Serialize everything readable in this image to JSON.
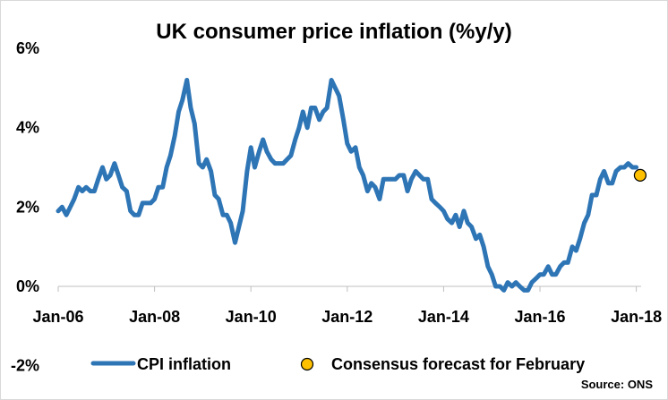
{
  "chart_data": {
    "type": "line",
    "title": "UK consumer price inflation (%y/y)",
    "source": "Source: ONS",
    "ylim": [
      -2,
      6
    ],
    "y_ticks": [
      {
        "value": 6,
        "label": "6%"
      },
      {
        "value": 4,
        "label": "4%"
      },
      {
        "value": 2,
        "label": "2%"
      },
      {
        "value": 0,
        "label": "0%"
      },
      {
        "value": -2,
        "label": "-2%"
      }
    ],
    "x_ticks": [
      {
        "value": 2006,
        "label": "Jan-06"
      },
      {
        "value": 2008,
        "label": "Jan-08"
      },
      {
        "value": 2010,
        "label": "Jan-10"
      },
      {
        "value": 2012,
        "label": "Jan-12"
      },
      {
        "value": 2014,
        "label": "Jan-14"
      },
      {
        "value": 2016,
        "label": "Jan-16"
      },
      {
        "value": 2018,
        "label": "Jan-18"
      }
    ],
    "xlim": [
      2006,
      2018.1
    ],
    "grid": false,
    "legend_position": "bottom",
    "series": [
      {
        "name": "CPI inflation",
        "type": "line",
        "color": "#2e75b6",
        "points": [
          [
            2006.0,
            1.9
          ],
          [
            2006.08,
            2.0
          ],
          [
            2006.17,
            1.8
          ],
          [
            2006.25,
            2.0
          ],
          [
            2006.33,
            2.2
          ],
          [
            2006.42,
            2.5
          ],
          [
            2006.5,
            2.4
          ],
          [
            2006.58,
            2.5
          ],
          [
            2006.67,
            2.4
          ],
          [
            2006.75,
            2.4
          ],
          [
            2006.83,
            2.7
          ],
          [
            2006.92,
            3.0
          ],
          [
            2007.0,
            2.7
          ],
          [
            2007.08,
            2.8
          ],
          [
            2007.17,
            3.1
          ],
          [
            2007.25,
            2.8
          ],
          [
            2007.33,
            2.5
          ],
          [
            2007.42,
            2.4
          ],
          [
            2007.5,
            1.9
          ],
          [
            2007.58,
            1.8
          ],
          [
            2007.67,
            1.8
          ],
          [
            2007.75,
            2.1
          ],
          [
            2007.83,
            2.1
          ],
          [
            2007.92,
            2.1
          ],
          [
            2008.0,
            2.2
          ],
          [
            2008.08,
            2.5
          ],
          [
            2008.17,
            2.5
          ],
          [
            2008.25,
            3.0
          ],
          [
            2008.33,
            3.3
          ],
          [
            2008.42,
            3.8
          ],
          [
            2008.5,
            4.4
          ],
          [
            2008.58,
            4.7
          ],
          [
            2008.67,
            5.2
          ],
          [
            2008.75,
            4.5
          ],
          [
            2008.83,
            4.1
          ],
          [
            2008.92,
            3.1
          ],
          [
            2009.0,
            3.0
          ],
          [
            2009.08,
            3.2
          ],
          [
            2009.17,
            2.9
          ],
          [
            2009.25,
            2.3
          ],
          [
            2009.33,
            2.2
          ],
          [
            2009.42,
            1.8
          ],
          [
            2009.5,
            1.8
          ],
          [
            2009.58,
            1.6
          ],
          [
            2009.67,
            1.1
          ],
          [
            2009.75,
            1.5
          ],
          [
            2009.83,
            1.9
          ],
          [
            2009.92,
            2.9
          ],
          [
            2010.0,
            3.5
          ],
          [
            2010.08,
            3.0
          ],
          [
            2010.17,
            3.4
          ],
          [
            2010.25,
            3.7
          ],
          [
            2010.33,
            3.4
          ],
          [
            2010.42,
            3.2
          ],
          [
            2010.5,
            3.1
          ],
          [
            2010.58,
            3.1
          ],
          [
            2010.67,
            3.1
          ],
          [
            2010.75,
            3.2
          ],
          [
            2010.83,
            3.3
          ],
          [
            2010.92,
            3.7
          ],
          [
            2011.0,
            4.0
          ],
          [
            2011.08,
            4.4
          ],
          [
            2011.17,
            4.0
          ],
          [
            2011.25,
            4.5
          ],
          [
            2011.33,
            4.5
          ],
          [
            2011.42,
            4.2
          ],
          [
            2011.5,
            4.4
          ],
          [
            2011.58,
            4.5
          ],
          [
            2011.67,
            5.2
          ],
          [
            2011.75,
            5.0
          ],
          [
            2011.83,
            4.8
          ],
          [
            2011.92,
            4.2
          ],
          [
            2012.0,
            3.6
          ],
          [
            2012.08,
            3.4
          ],
          [
            2012.17,
            3.5
          ],
          [
            2012.25,
            3.0
          ],
          [
            2012.33,
            2.8
          ],
          [
            2012.42,
            2.4
          ],
          [
            2012.5,
            2.6
          ],
          [
            2012.58,
            2.5
          ],
          [
            2012.67,
            2.2
          ],
          [
            2012.75,
            2.7
          ],
          [
            2012.83,
            2.7
          ],
          [
            2012.92,
            2.7
          ],
          [
            2013.0,
            2.7
          ],
          [
            2013.08,
            2.8
          ],
          [
            2013.17,
            2.8
          ],
          [
            2013.25,
            2.4
          ],
          [
            2013.33,
            2.7
          ],
          [
            2013.42,
            2.9
          ],
          [
            2013.5,
            2.8
          ],
          [
            2013.58,
            2.7
          ],
          [
            2013.67,
            2.7
          ],
          [
            2013.75,
            2.2
          ],
          [
            2013.83,
            2.1
          ],
          [
            2013.92,
            2.0
          ],
          [
            2014.0,
            1.9
          ],
          [
            2014.08,
            1.7
          ],
          [
            2014.17,
            1.6
          ],
          [
            2014.25,
            1.8
          ],
          [
            2014.33,
            1.5
          ],
          [
            2014.42,
            1.9
          ],
          [
            2014.5,
            1.6
          ],
          [
            2014.58,
            1.5
          ],
          [
            2014.67,
            1.2
          ],
          [
            2014.75,
            1.3
          ],
          [
            2014.83,
            1.0
          ],
          [
            2014.92,
            0.5
          ],
          [
            2015.0,
            0.3
          ],
          [
            2015.08,
            0.0
          ],
          [
            2015.17,
            0.0
          ],
          [
            2015.25,
            -0.1
          ],
          [
            2015.33,
            0.1
          ],
          [
            2015.42,
            0.0
          ],
          [
            2015.5,
            0.1
          ],
          [
            2015.58,
            0.0
          ],
          [
            2015.67,
            -0.1
          ],
          [
            2015.75,
            -0.1
          ],
          [
            2015.83,
            0.1
          ],
          [
            2015.92,
            0.2
          ],
          [
            2016.0,
            0.3
          ],
          [
            2016.08,
            0.3
          ],
          [
            2016.17,
            0.5
          ],
          [
            2016.25,
            0.3
          ],
          [
            2016.33,
            0.3
          ],
          [
            2016.42,
            0.5
          ],
          [
            2016.5,
            0.6
          ],
          [
            2016.58,
            0.6
          ],
          [
            2016.67,
            1.0
          ],
          [
            2016.75,
            0.9
          ],
          [
            2016.83,
            1.2
          ],
          [
            2016.92,
            1.6
          ],
          [
            2017.0,
            1.8
          ],
          [
            2017.08,
            2.3
          ],
          [
            2017.17,
            2.3
          ],
          [
            2017.25,
            2.7
          ],
          [
            2017.33,
            2.9
          ],
          [
            2017.42,
            2.6
          ],
          [
            2017.5,
            2.6
          ],
          [
            2017.58,
            2.9
          ],
          [
            2017.67,
            3.0
          ],
          [
            2017.75,
            3.0
          ],
          [
            2017.83,
            3.1
          ],
          [
            2017.92,
            3.0
          ],
          [
            2018.0,
            3.0
          ]
        ]
      },
      {
        "name": "Consensus forecast for February",
        "type": "scatter",
        "color": "#ffc000",
        "points": [
          [
            2018.08,
            2.8
          ]
        ]
      }
    ]
  }
}
